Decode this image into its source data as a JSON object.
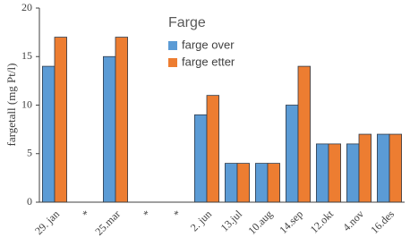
{
  "chart_data": {
    "type": "bar",
    "y_label": "fargetall (mg Pt/l)",
    "legend_title": "Farge",
    "categories": [
      "29. jan",
      "*",
      "25.mar",
      "*",
      "*",
      "2. jun",
      "13.jul",
      "10.aug",
      "14.sep",
      "12.okt",
      "4.nov",
      "16.des"
    ],
    "series": [
      {
        "name": "farge over",
        "color": "#5b9bd5",
        "values": [
          14,
          null,
          15,
          null,
          null,
          9,
          4,
          4,
          10,
          6,
          6,
          7
        ]
      },
      {
        "name": "farge etter",
        "color": "#ed7d31",
        "values": [
          17,
          null,
          17,
          null,
          null,
          11,
          4,
          4,
          14,
          6,
          7,
          7
        ]
      }
    ],
    "ylim": [
      0,
      20
    ],
    "yticks": [
      0,
      5,
      10,
      15,
      20
    ],
    "grid": false
  }
}
